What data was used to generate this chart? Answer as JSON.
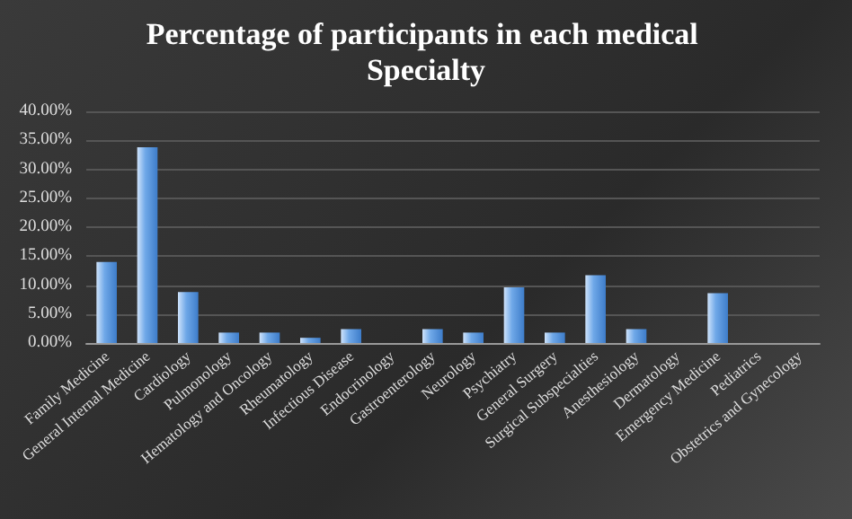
{
  "chart_data": {
    "type": "bar",
    "title": "Percentage of participants in each medical Specialty",
    "categories": [
      "Family Medicine",
      "General Internal Medicine",
      "Cardiology",
      "Pulmonology",
      "Hematology and Oncology",
      "Rheumatology",
      "Infectious Disease",
      "Endocrinology",
      "Gastroenterology",
      "Neurology",
      "Psychiatry",
      "General Surgery",
      "Surgical Subspecialties",
      "Anesthesiology",
      "Dermatology",
      "Emergency Medicine",
      "Pediatrics",
      "Obstetrics and Gynecology"
    ],
    "values": [
      14.0,
      33.8,
      8.8,
      1.8,
      1.8,
      0.9,
      2.4,
      0,
      2.4,
      1.8,
      9.6,
      1.8,
      11.7,
      2.4,
      0,
      8.6,
      0,
      0
    ],
    "color": "#6fa8e8",
    "ylim": [
      0,
      40
    ],
    "yticks": [
      {
        "value": 0,
        "label": "0.00%"
      },
      {
        "value": 5,
        "label": "5.00%"
      },
      {
        "value": 10,
        "label": "10.00%"
      },
      {
        "value": 15,
        "label": "15.00%"
      },
      {
        "value": 20,
        "label": "20.00%"
      },
      {
        "value": 25,
        "label": "25.00%"
      },
      {
        "value": 30,
        "label": "30.00%"
      },
      {
        "value": 35,
        "label": "35.00%"
      },
      {
        "value": 40,
        "label": "40.00%"
      }
    ],
    "grid": "y"
  }
}
